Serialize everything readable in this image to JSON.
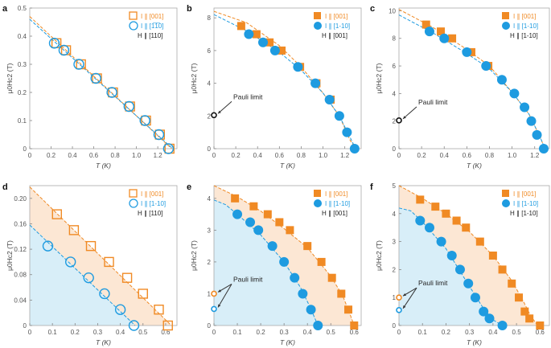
{
  "colors": {
    "orange": "#F08A24",
    "blue": "#1E9BE0",
    "orange_fill": "#FCE7D4",
    "blue_fill": "#D8EEF8",
    "axis": "#999999",
    "text": "#333333"
  },
  "chart_data": [
    {
      "panel": "a",
      "type": "scatter",
      "xlabel": "T (K)",
      "ylabel": "μ0Hc2 (T)",
      "xlim": [
        0,
        1.38
      ],
      "ylim": [
        0,
        0.5
      ],
      "xticks": [
        0,
        0.2,
        0.4,
        0.6,
        0.8,
        1.0,
        1.2
      ],
      "xtick_labels": [
        "0",
        "0.2",
        "0.4",
        "0.6",
        "0.8",
        "1.0",
        "1.2"
      ],
      "yticks": [
        0,
        0.1,
        0.2,
        0.3,
        0.4,
        0.5
      ],
      "ytick_labels": [
        "0",
        "0.1",
        "0.2",
        "0.3",
        "0.4",
        "0.5"
      ],
      "marker": "open",
      "shaded": false,
      "legend": [
        "I ∥ [001]",
        "I ∥ [1̅1̅0]",
        "H ∥ [110]"
      ],
      "series": [
        {
          "name": "I ∥ [001]",
          "color": "orange",
          "shape": "square",
          "x": [
            0.25,
            0.34,
            0.48,
            0.63,
            0.78,
            0.94,
            1.09,
            1.22,
            1.31
          ],
          "y": [
            0.375,
            0.35,
            0.3,
            0.25,
            0.2,
            0.15,
            0.1,
            0.05,
            0.0
          ],
          "fit": [
            [
              0,
              0.47
            ],
            [
              1.33,
              0
            ]
          ]
        },
        {
          "name": "I ∥ [1-10]",
          "color": "blue",
          "shape": "circle",
          "x": [
            0.23,
            0.32,
            0.46,
            0.62,
            0.77,
            0.93,
            1.08,
            1.21,
            1.3
          ],
          "y": [
            0.375,
            0.35,
            0.3,
            0.25,
            0.2,
            0.15,
            0.1,
            0.05,
            0.0
          ],
          "fit": [
            [
              0,
              0.46
            ],
            [
              1.34,
              0
            ]
          ]
        }
      ],
      "pauli": []
    },
    {
      "panel": "b",
      "type": "scatter",
      "xlabel": "T (K)",
      "ylabel": "μ0Hc2 (T)",
      "xlim": [
        0,
        1.35
      ],
      "ylim": [
        0,
        8.6
      ],
      "xticks": [
        0,
        0.2,
        0.4,
        0.6,
        0.8,
        1.0,
        1.2
      ],
      "xtick_labels": [
        "0",
        "0.2",
        "0.4",
        "0.6",
        "0.8",
        "1.0",
        "1.2"
      ],
      "yticks": [
        0,
        2,
        4,
        6,
        8
      ],
      "ytick_labels": [
        "0",
        "2",
        "4",
        "6",
        "8"
      ],
      "marker": "filled",
      "shaded": false,
      "legend": [
        "I ∥ [001]",
        "I ∥ [1-10]",
        "H ∥ [001]"
      ],
      "series": [
        {
          "name": "I ∥ [001]",
          "color": "orange",
          "shape": "square",
          "x": [
            0.25,
            0.39,
            0.51,
            0.62,
            0.79,
            0.94,
            1.07
          ],
          "y": [
            7.5,
            7.0,
            6.5,
            6.0,
            5.0,
            4.0,
            3.0
          ],
          "fit": [
            [
              0,
              8.4
            ],
            [
              0.3,
              7.7
            ],
            [
              0.6,
              6.3
            ],
            [
              0.8,
              5.0
            ],
            [
              1.0,
              3.4
            ],
            [
              1.15,
              2.0
            ],
            [
              1.25,
              0.5
            ],
            [
              1.3,
              0
            ]
          ]
        },
        {
          "name": "I ∥ [1-10]",
          "color": "blue",
          "shape": "circle",
          "x": [
            0.32,
            0.45,
            0.56,
            0.77,
            0.93,
            1.06,
            1.15,
            1.22,
            1.29
          ],
          "y": [
            7.0,
            6.5,
            6.0,
            5.0,
            4.0,
            3.0,
            2.0,
            1.0,
            0.0
          ],
          "fit": [
            [
              0,
              8.2
            ],
            [
              0.3,
              7.2
            ],
            [
              0.6,
              5.9
            ],
            [
              0.8,
              4.8
            ],
            [
              1.0,
              3.4
            ],
            [
              1.15,
              2.0
            ],
            [
              1.24,
              0.8
            ],
            [
              1.3,
              0
            ]
          ]
        }
      ],
      "pauli": [
        {
          "x": 0,
          "y": 2.05,
          "color": "black"
        }
      ],
      "pauli_label": "Pauli limit"
    },
    {
      "panel": "c",
      "type": "scatter",
      "xlabel": "T (K)",
      "ylabel": "μ0Hc2 (T)",
      "xlim": [
        0,
        1.33
      ],
      "ylim": [
        0,
        10.2
      ],
      "xticks": [
        0,
        0.2,
        0.4,
        0.6,
        0.8,
        1.0,
        1.2
      ],
      "xtick_labels": [
        "0",
        "0.2",
        "0.4",
        "0.6",
        "0.8",
        "1.0",
        "1.2"
      ],
      "yticks": [
        0,
        2,
        4,
        6,
        8,
        10
      ],
      "ytick_labels": [
        "0",
        "2",
        "4",
        "6",
        "8",
        "10"
      ],
      "marker": "filled",
      "shaded": false,
      "legend": [
        "I ∥ [001]",
        "I ∥ [1-10]",
        "H ∥ [1-10]"
      ],
      "series": [
        {
          "name": "I ∥ [001]",
          "color": "orange",
          "shape": "square",
          "x": [
            0.24,
            0.37,
            0.47,
            0.64,
            0.79
          ],
          "y": [
            9.0,
            8.5,
            8.0,
            7.0,
            6.0
          ],
          "fit": [
            [
              0,
              10.1
            ],
            [
              0.3,
              8.8
            ],
            [
              0.6,
              7.2
            ],
            [
              0.8,
              6.0
            ],
            [
              1.0,
              4.1
            ],
            [
              1.15,
              2.5
            ],
            [
              1.25,
              0.8
            ],
            [
              1.29,
              0
            ]
          ]
        },
        {
          "name": "I ∥ [1-10]",
          "color": "blue",
          "shape": "circle",
          "x": [
            0.27,
            0.4,
            0.6,
            0.77,
            0.91,
            1.02,
            1.11,
            1.17,
            1.22,
            1.28
          ],
          "y": [
            8.5,
            8.0,
            7.0,
            6.0,
            5.0,
            4.0,
            3.0,
            2.0,
            1.0,
            0.0
          ],
          "fit": [
            [
              0,
              9.7
            ],
            [
              0.3,
              8.4
            ],
            [
              0.6,
              6.9
            ],
            [
              0.8,
              5.8
            ],
            [
              1.0,
              4.1
            ],
            [
              1.15,
              2.5
            ],
            [
              1.25,
              0.8
            ],
            [
              1.29,
              0
            ]
          ]
        }
      ],
      "pauli": [
        {
          "x": 0,
          "y": 2.05,
          "color": "black"
        }
      ],
      "pauli_label": "Pauli limit"
    },
    {
      "panel": "d",
      "type": "scatter",
      "xlabel": "T (K)",
      "ylabel": "μ0Hc2 (T)",
      "xlim": [
        0,
        0.65
      ],
      "ylim": [
        0,
        0.22
      ],
      "xticks": [
        0,
        0.1,
        0.2,
        0.3,
        0.4,
        0.5,
        0.6
      ],
      "xtick_labels": [
        "0",
        "0.1",
        "0.2",
        "0.3",
        "0.4",
        "0.5",
        "0.6"
      ],
      "yticks": [
        0,
        0.04,
        0.08,
        0.12,
        0.16,
        0.2
      ],
      "ytick_labels": [
        "0",
        "0.04",
        "0.08",
        "0.12",
        "0.16",
        "0.20"
      ],
      "marker": "open",
      "shaded": true,
      "legend": [
        "I ∥ [001]",
        "I ∥ [1-10]",
        "H ∥ [110]"
      ],
      "series": [
        {
          "name": "I ∥ [001]",
          "color": "orange",
          "shape": "square",
          "x": [
            0.12,
            0.195,
            0.27,
            0.35,
            0.43,
            0.5,
            0.57,
            0.61
          ],
          "y": [
            0.175,
            0.15,
            0.125,
            0.1,
            0.075,
            0.05,
            0.025,
            0.0
          ],
          "fit": [
            [
              0,
              0.218
            ],
            [
              0.625,
              0
            ]
          ]
        },
        {
          "name": "I ∥ [1-10]",
          "color": "blue",
          "shape": "circle",
          "x": [
            0.08,
            0.18,
            0.26,
            0.33,
            0.4,
            0.46
          ],
          "y": [
            0.125,
            0.1,
            0.075,
            0.05,
            0.025,
            0.0
          ],
          "fit": [
            [
              0,
              0.158
            ],
            [
              0.465,
              0
            ]
          ]
        }
      ],
      "pauli": []
    },
    {
      "panel": "e",
      "type": "scatter",
      "xlabel": "T (K)",
      "ylabel": "μ0Hc2 (T)",
      "xlim": [
        0,
        0.63
      ],
      "ylim": [
        0,
        4.4
      ],
      "xticks": [
        0,
        0.1,
        0.2,
        0.3,
        0.4,
        0.5,
        0.6
      ],
      "xtick_labels": [
        "0",
        "0.1",
        "0.2",
        "0.3",
        "0.4",
        "0.5",
        "0.6"
      ],
      "yticks": [
        0,
        1,
        2,
        3,
        4
      ],
      "ytick_labels": [
        "0",
        "1",
        "2",
        "3",
        "4"
      ],
      "marker": "filled",
      "shaded": true,
      "legend": [
        "I ∥ [001]",
        "I ∥ [1-10]",
        "H ∥ [001]"
      ],
      "series": [
        {
          "name": "I ∥ [001]",
          "color": "orange",
          "shape": "square",
          "x": [
            0.09,
            0.17,
            0.23,
            0.28,
            0.325,
            0.4,
            0.46,
            0.505,
            0.545,
            0.575,
            0.6
          ],
          "y": [
            4.0,
            3.75,
            3.5,
            3.25,
            3.0,
            2.5,
            2.0,
            1.5,
            1.0,
            0.5,
            0.0
          ],
          "fit": [
            [
              0,
              4.4
            ],
            [
              0.1,
              4.05
            ],
            [
              0.2,
              3.6
            ],
            [
              0.3,
              3.05
            ],
            [
              0.4,
              2.45
            ],
            [
              0.5,
              1.55
            ],
            [
              0.55,
              0.95
            ],
            [
              0.58,
              0.4
            ],
            [
              0.6,
              0
            ]
          ]
        },
        {
          "name": "I ∥ [1-10]",
          "color": "blue",
          "shape": "circle",
          "x": [
            0.1,
            0.155,
            0.19,
            0.25,
            0.3,
            0.345,
            0.38,
            0.415,
            0.445
          ],
          "y": [
            3.5,
            3.25,
            3.0,
            2.5,
            2.0,
            1.5,
            1.0,
            0.5,
            0.0
          ],
          "fit": [
            [
              0,
              3.95
            ],
            [
              0.05,
              3.8
            ],
            [
              0.1,
              3.5
            ],
            [
              0.2,
              2.85
            ],
            [
              0.3,
              2.0
            ],
            [
              0.37,
              1.2
            ],
            [
              0.41,
              0.6
            ],
            [
              0.445,
              0
            ]
          ]
        }
      ],
      "pauli": [
        {
          "x": 0,
          "y": 1.0,
          "color": "orange"
        },
        {
          "x": 0,
          "y": 0.52,
          "color": "blue"
        }
      ],
      "pauli_label": "Pauli limit"
    },
    {
      "panel": "f",
      "type": "scatter",
      "xlabel": "T (K)",
      "ylabel": "μ0Hc2 (T)",
      "xlim": [
        0,
        0.64
      ],
      "ylim": [
        0,
        5.0
      ],
      "xticks": [
        0,
        0.1,
        0.2,
        0.3,
        0.4,
        0.5,
        0.6
      ],
      "xtick_labels": [
        "0",
        "0.1",
        "0.2",
        "0.3",
        "0.4",
        "0.5",
        "0.6"
      ],
      "yticks": [
        0,
        1,
        2,
        3,
        4,
        5
      ],
      "ytick_labels": [
        "0",
        "1",
        "2",
        "3",
        "4",
        "5"
      ],
      "marker": "filled",
      "shaded": true,
      "legend": [
        "I ∥ [001]",
        "I ∥ [1-10]",
        "H ∥ [1-10]"
      ],
      "series": [
        {
          "name": "I ∥ [001]",
          "color": "orange",
          "shape": "square",
          "x": [
            0.09,
            0.155,
            0.2,
            0.245,
            0.285,
            0.345,
            0.4,
            0.44,
            0.48,
            0.51,
            0.535,
            0.555,
            0.6
          ],
          "y": [
            4.5,
            4.25,
            4.0,
            3.75,
            3.5,
            3.0,
            2.5,
            2.0,
            1.5,
            1.0,
            0.5,
            0.25,
            0.0
          ],
          "fit": [
            [
              0,
              5.0
            ],
            [
              0.1,
              4.55
            ],
            [
              0.2,
              4.0
            ],
            [
              0.3,
              3.35
            ],
            [
              0.4,
              2.5
            ],
            [
              0.48,
              1.6
            ],
            [
              0.53,
              0.85
            ],
            [
              0.56,
              0.35
            ],
            [
              0.59,
              0
            ]
          ]
        },
        {
          "name": "I ∥ [1-10]",
          "color": "blue",
          "shape": "circle",
          "x": [
            0.09,
            0.13,
            0.18,
            0.225,
            0.26,
            0.295,
            0.325,
            0.36,
            0.385,
            0.44
          ],
          "y": [
            3.75,
            3.5,
            3.0,
            2.5,
            2.0,
            1.5,
            1.0,
            0.5,
            0.25,
            0.0
          ],
          "fit": [
            [
              0,
              4.2
            ],
            [
              0.05,
              4.1
            ],
            [
              0.1,
              3.7
            ],
            [
              0.2,
              2.75
            ],
            [
              0.3,
              1.4
            ],
            [
              0.36,
              0.6
            ],
            [
              0.4,
              0.2
            ],
            [
              0.44,
              0
            ]
          ]
        }
      ],
      "pauli": [
        {
          "x": 0,
          "y": 1.0,
          "color": "orange"
        },
        {
          "x": 0,
          "y": 0.55,
          "color": "blue"
        }
      ],
      "pauli_label": "Pauli limit"
    }
  ]
}
